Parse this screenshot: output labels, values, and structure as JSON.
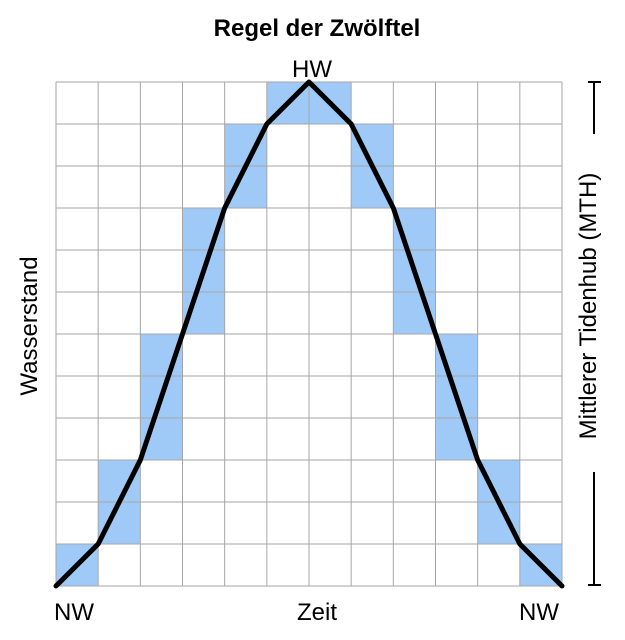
{
  "chart_data": {
    "type": "line",
    "title": "Regel der Zwölftel",
    "xlabel": "Zeit",
    "ylabel": "Wasserstand",
    "right_label": "Mittlerer Tidenhub (MTH)",
    "x_start_label": "NW",
    "x_end_label": "NW",
    "peak_label": "HW",
    "xlim": [
      0,
      12
    ],
    "ylim": [
      0,
      12
    ],
    "grid": true,
    "x": [
      0,
      1,
      2,
      3,
      4,
      5,
      6,
      7,
      8,
      9,
      10,
      11,
      12
    ],
    "series": [
      {
        "values": [
          0,
          1,
          3,
          6,
          9,
          11,
          12,
          11,
          9,
          6,
          3,
          1,
          0
        ]
      }
    ],
    "colors": {
      "line": "#000000",
      "fill": "#9fcaf7",
      "grid": "#a6a6a6"
    }
  }
}
